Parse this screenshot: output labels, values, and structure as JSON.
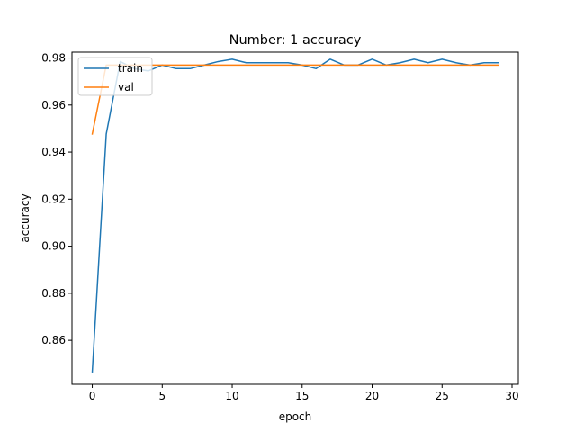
{
  "chart_data": {
    "type": "line",
    "title": "Number: 1 accuracy",
    "xlabel": "epoch",
    "ylabel": "accuracy",
    "xlim": [
      -1.45,
      30.45
    ],
    "ylim": [
      0.8413,
      0.9825
    ],
    "xticks": [
      0,
      5,
      10,
      15,
      20,
      25,
      30
    ],
    "xtick_labels": [
      "0",
      "5",
      "10",
      "15",
      "20",
      "25",
      "30"
    ],
    "yticks": [
      0.86,
      0.88,
      0.9,
      0.92,
      0.94,
      0.96,
      0.98
    ],
    "ytick_labels": [
      "0.86",
      "0.88",
      "0.90",
      "0.92",
      "0.94",
      "0.96",
      "0.98"
    ],
    "grid": false,
    "legend_position": "top-left",
    "x": [
      0,
      1,
      2,
      3,
      4,
      5,
      6,
      7,
      8,
      9,
      10,
      11,
      12,
      13,
      14,
      15,
      16,
      17,
      18,
      19,
      20,
      21,
      22,
      23,
      24,
      25,
      26,
      27,
      28,
      29
    ],
    "series": [
      {
        "name": "train",
        "color": "#1f77b4",
        "values": [
          0.8466,
          0.9477,
          0.9785,
          0.9755,
          0.9745,
          0.977,
          0.9755,
          0.9755,
          0.977,
          0.9785,
          0.9795,
          0.978,
          0.978,
          0.978,
          0.978,
          0.977,
          0.9755,
          0.9795,
          0.977,
          0.977,
          0.9795,
          0.977,
          0.978,
          0.9795,
          0.978,
          0.9795,
          0.978,
          0.977,
          0.978,
          0.978
        ]
      },
      {
        "name": "val",
        "color": "#ff7f0e",
        "values": [
          0.9477,
          0.977,
          0.977,
          0.977,
          0.977,
          0.977,
          0.977,
          0.977,
          0.977,
          0.977,
          0.977,
          0.977,
          0.977,
          0.977,
          0.977,
          0.977,
          0.977,
          0.977,
          0.977,
          0.977,
          0.977,
          0.977,
          0.977,
          0.977,
          0.977,
          0.977,
          0.977,
          0.977,
          0.977,
          0.977
        ]
      }
    ]
  }
}
